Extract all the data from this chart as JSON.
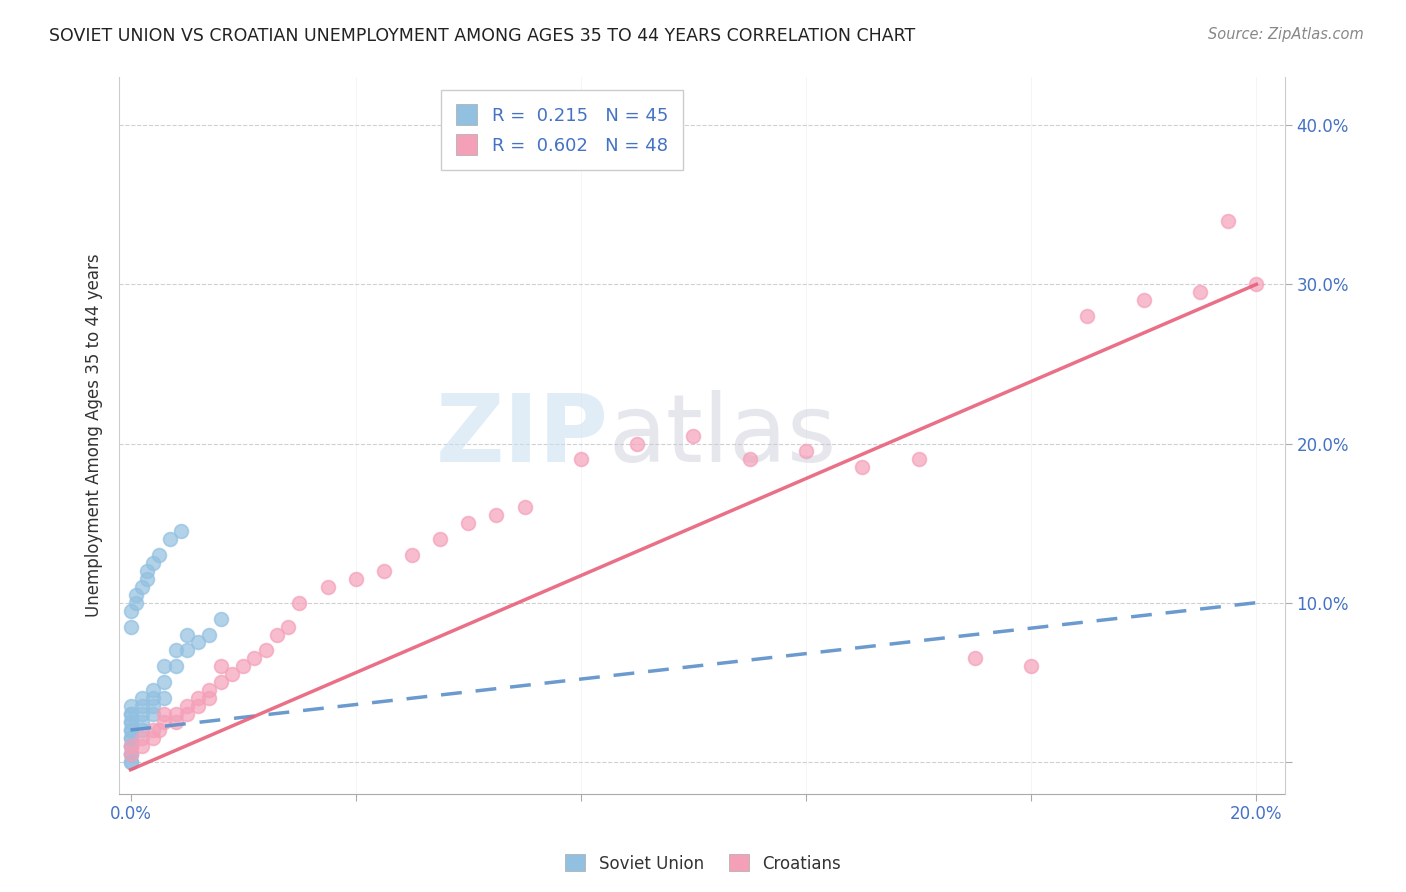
{
  "title": "SOVIET UNION VS CROATIAN UNEMPLOYMENT AMONG AGES 35 TO 44 YEARS CORRELATION CHART",
  "source": "Source: ZipAtlas.com",
  "ylabel": "Unemployment Among Ages 35 to 44 years",
  "xlim": [
    -0.002,
    0.205
  ],
  "ylim": [
    -0.02,
    0.43
  ],
  "x_ticks": [
    0.0,
    0.04,
    0.08,
    0.12,
    0.16,
    0.2
  ],
  "y_ticks": [
    0.0,
    0.1,
    0.2,
    0.3,
    0.4
  ],
  "soviet_color": "#92C0E0",
  "croatian_color": "#F4A0B8",
  "soviet_line_color": "#5B8FC9",
  "croatian_line_color": "#E8607A",
  "soviet_R": 0.215,
  "soviet_N": 45,
  "croatian_R": 0.602,
  "croatian_N": 48,
  "watermark_1": "ZIP",
  "watermark_2": "atlas",
  "background_color": "#ffffff",
  "grid_color": "#d0d0d0",
  "soviet_x": [
    0.0,
    0.0,
    0.0,
    0.0,
    0.0,
    0.0,
    0.0,
    0.0,
    0.0,
    0.0,
    0.0,
    0.0,
    0.0,
    0.0,
    0.0,
    0.002,
    0.002,
    0.002,
    0.002,
    0.002,
    0.004,
    0.004,
    0.004,
    0.004,
    0.006,
    0.006,
    0.006,
    0.008,
    0.008,
    0.01,
    0.01,
    0.012,
    0.014,
    0.016,
    0.0,
    0.0,
    0.001,
    0.001,
    0.002,
    0.003,
    0.003,
    0.004,
    0.005,
    0.007,
    0.009
  ],
  "soviet_y": [
    0.0,
    0.0,
    0.005,
    0.005,
    0.01,
    0.01,
    0.015,
    0.015,
    0.02,
    0.02,
    0.025,
    0.025,
    0.03,
    0.03,
    0.035,
    0.02,
    0.025,
    0.03,
    0.035,
    0.04,
    0.03,
    0.035,
    0.04,
    0.045,
    0.04,
    0.05,
    0.06,
    0.06,
    0.07,
    0.07,
    0.08,
    0.075,
    0.08,
    0.09,
    0.085,
    0.095,
    0.1,
    0.105,
    0.11,
    0.115,
    0.12,
    0.125,
    0.13,
    0.14,
    0.145
  ],
  "croatian_x": [
    0.0,
    0.0,
    0.002,
    0.002,
    0.004,
    0.004,
    0.005,
    0.006,
    0.006,
    0.008,
    0.008,
    0.01,
    0.01,
    0.012,
    0.012,
    0.014,
    0.014,
    0.016,
    0.016,
    0.018,
    0.02,
    0.022,
    0.024,
    0.026,
    0.028,
    0.03,
    0.035,
    0.04,
    0.045,
    0.05,
    0.055,
    0.06,
    0.065,
    0.07,
    0.08,
    0.09,
    0.1,
    0.11,
    0.12,
    0.13,
    0.14,
    0.15,
    0.16,
    0.17,
    0.18,
    0.19,
    0.195,
    0.2
  ],
  "croatian_y": [
    0.005,
    0.01,
    0.01,
    0.015,
    0.015,
    0.02,
    0.02,
    0.025,
    0.03,
    0.025,
    0.03,
    0.03,
    0.035,
    0.035,
    0.04,
    0.04,
    0.045,
    0.05,
    0.06,
    0.055,
    0.06,
    0.065,
    0.07,
    0.08,
    0.085,
    0.1,
    0.11,
    0.115,
    0.12,
    0.13,
    0.14,
    0.15,
    0.155,
    0.16,
    0.19,
    0.2,
    0.205,
    0.19,
    0.195,
    0.185,
    0.19,
    0.065,
    0.06,
    0.28,
    0.29,
    0.295,
    0.34,
    0.3
  ],
  "su_line_x0": 0.0,
  "su_line_y0": 0.02,
  "su_line_x1": 0.2,
  "su_line_y1": 0.1,
  "cr_line_x0": 0.0,
  "cr_line_y0": -0.005,
  "cr_line_x1": 0.2,
  "cr_line_y1": 0.3
}
